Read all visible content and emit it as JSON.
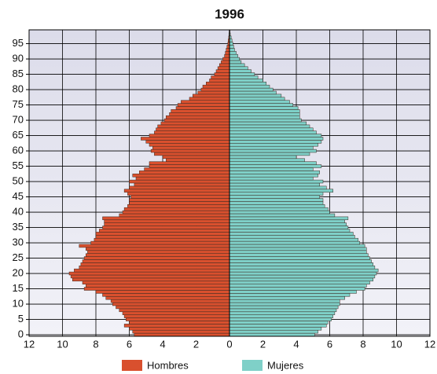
{
  "chart_data": {
    "type": "pyramid",
    "title": "1996",
    "y": [
      0,
      1,
      2,
      3,
      4,
      5,
      6,
      7,
      8,
      9,
      10,
      11,
      12,
      13,
      14,
      15,
      16,
      17,
      18,
      19,
      20,
      21,
      22,
      23,
      24,
      25,
      26,
      27,
      28,
      29,
      30,
      31,
      32,
      33,
      34,
      35,
      36,
      37,
      38,
      39,
      40,
      41,
      42,
      43,
      44,
      45,
      46,
      47,
      48,
      49,
      50,
      51,
      52,
      53,
      54,
      55,
      56,
      57,
      58,
      59,
      60,
      61,
      62,
      63,
      64,
      65,
      66,
      67,
      68,
      69,
      70,
      71,
      72,
      73,
      74,
      75,
      76,
      77,
      78,
      79,
      80,
      81,
      82,
      83,
      84,
      85,
      86,
      87,
      88,
      89,
      90,
      91,
      92,
      93,
      94,
      95,
      96,
      97,
      98,
      99
    ],
    "series": [
      {
        "name": "Hombres",
        "color": "#d9502e",
        "side": "left",
        "values": [
          5.7,
          5.8,
          6.0,
          6.3,
          6.0,
          6.2,
          6.3,
          6.4,
          6.6,
          6.8,
          7.0,
          7.1,
          7.4,
          7.6,
          8.0,
          8.7,
          8.6,
          8.8,
          9.4,
          9.5,
          9.6,
          9.3,
          9.0,
          8.9,
          8.8,
          8.7,
          8.6,
          8.5,
          8.6,
          9.0,
          8.3,
          8.1,
          8.0,
          8.0,
          7.8,
          7.6,
          7.5,
          7.5,
          7.6,
          6.6,
          6.4,
          6.3,
          6.1,
          6.0,
          6.0,
          5.9,
          6.1,
          6.3,
          6.0,
          5.7,
          6.0,
          5.6,
          5.8,
          5.4,
          5.1,
          4.8,
          4.8,
          3.8,
          4.0,
          4.5,
          4.7,
          4.6,
          4.8,
          5.0,
          5.3,
          4.8,
          4.5,
          4.4,
          4.3,
          4.1,
          3.9,
          3.8,
          3.6,
          3.5,
          3.2,
          3.1,
          2.9,
          2.4,
          2.2,
          1.9,
          1.7,
          1.6,
          1.4,
          1.2,
          1.1,
          0.9,
          0.8,
          0.7,
          0.6,
          0.5,
          0.4,
          0.3,
          0.25,
          0.2,
          0.15,
          0.1,
          0.08,
          0.05,
          0.03,
          0.02
        ]
      },
      {
        "name": "Mujeres",
        "color": "#7fd0c8",
        "side": "right",
        "values": [
          5.1,
          5.3,
          5.5,
          5.8,
          5.9,
          6.1,
          6.2,
          6.3,
          6.4,
          6.5,
          6.6,
          6.6,
          6.9,
          7.2,
          7.6,
          8.1,
          8.2,
          8.4,
          8.6,
          8.7,
          8.8,
          8.9,
          8.7,
          8.6,
          8.5,
          8.4,
          8.3,
          8.2,
          8.2,
          8.1,
          7.8,
          7.7,
          7.5,
          7.4,
          7.2,
          7.1,
          7.0,
          6.9,
          7.1,
          6.3,
          6.0,
          5.9,
          5.7,
          5.6,
          5.6,
          5.4,
          5.6,
          6.2,
          5.8,
          5.4,
          5.6,
          5.0,
          5.3,
          5.4,
          5.0,
          5.5,
          5.2,
          4.5,
          4.0,
          4.8,
          5.2,
          5.0,
          5.3,
          5.5,
          5.6,
          5.5,
          5.2,
          5.0,
          4.8,
          4.6,
          4.3,
          4.2,
          4.2,
          4.2,
          4.1,
          3.8,
          3.6,
          3.3,
          3.1,
          2.8,
          2.6,
          2.4,
          2.2,
          2.0,
          1.7,
          1.5,
          1.3,
          1.1,
          0.9,
          0.7,
          0.6,
          0.5,
          0.4,
          0.3,
          0.25,
          0.2,
          0.15,
          0.1,
          0.05,
          0.03
        ]
      }
    ],
    "xlim": [
      -12,
      12
    ],
    "xticks": [
      {
        "value": -12,
        "label": "12"
      },
      {
        "value": -10,
        "label": "10"
      },
      {
        "value": -8,
        "label": "8"
      },
      {
        "value": -6,
        "label": "6"
      },
      {
        "value": -4,
        "label": "4"
      },
      {
        "value": -2,
        "label": "2"
      },
      0,
      2,
      4,
      6,
      8,
      10,
      12
    ],
    "ylim": [
      -0.5,
      99.5
    ],
    "yticks": [
      0,
      5,
      10,
      15,
      20,
      25,
      30,
      35,
      40,
      45,
      50,
      55,
      60,
      65,
      70,
      75,
      80,
      85,
      90,
      95
    ],
    "grid": true
  }
}
